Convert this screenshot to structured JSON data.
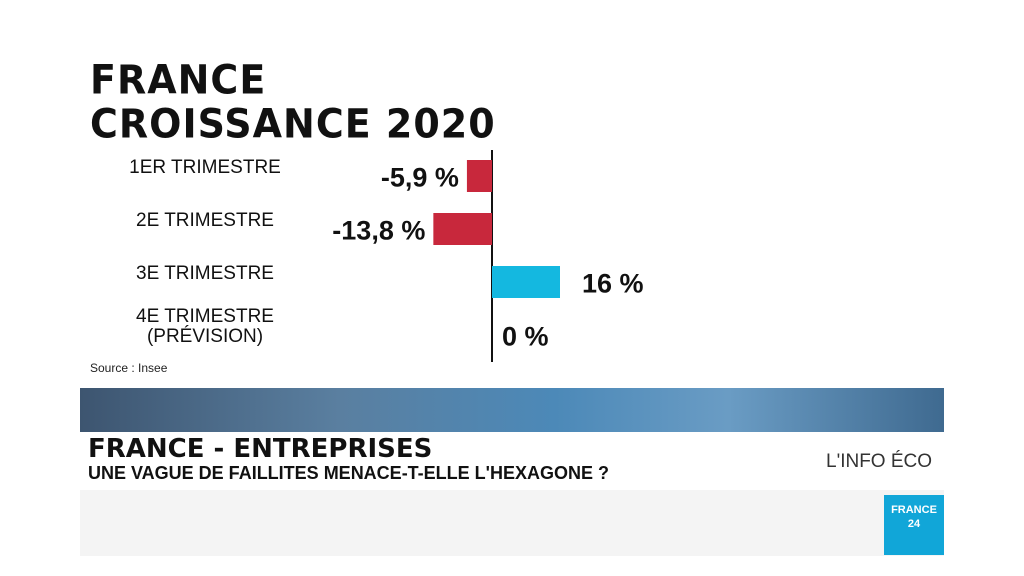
{
  "chart_data": {
    "type": "bar",
    "orientation": "horizontal",
    "title": "FRANCE\nCROISSANCE 2020",
    "categories": [
      "1ER TRIMESTRE",
      "2E TRIMESTRE",
      "3E TRIMESTRE",
      "4E TRIMESTRE (PRÉVISION)"
    ],
    "values": [
      -5.9,
      -13.8,
      16,
      0
    ],
    "value_labels": [
      "-5,9 %",
      "-13,8 %",
      "16 %",
      "0 %"
    ],
    "colors": [
      "#c8283c",
      "#c8283c",
      "#14b8e0",
      "#14b8e0"
    ],
    "source": "Source : Insee"
  },
  "banner": {
    "headline": "FRANCE - ENTREPRISES",
    "subline": "UNE VAGUE DE FAILLITES MENACE-T-ELLE L'HEXAGONE ?",
    "tag": "L'INFO ÉCO",
    "logo": "FRANCE\n24"
  }
}
